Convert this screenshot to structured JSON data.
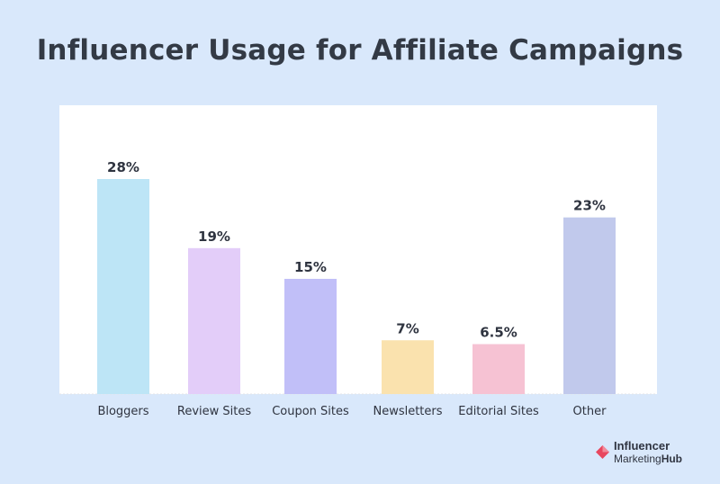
{
  "chart_data": {
    "type": "bar",
    "title": "Influencer Usage for Affiliate Campaigns",
    "xlabel": "",
    "ylabel": "",
    "categories": [
      "Bloggers",
      "Review Sites",
      "Coupon Sites",
      "Newsletters",
      "Editorial Sites",
      "Other"
    ],
    "values": [
      28,
      19,
      15,
      7,
      6.5,
      23
    ],
    "value_labels": [
      "28%",
      "19%",
      "15%",
      "7%",
      "6.5%",
      "23%"
    ],
    "colors": [
      "#bde5f6",
      "#e3cdf9",
      "#c1bff8",
      "#fae2ae",
      "#f6c2d3",
      "#c1c9ec"
    ],
    "ylim": [
      0,
      28
    ],
    "grid": false,
    "legend": "none"
  },
  "brand": {
    "line1": "Influencer",
    "line2a": "Marketing",
    "line2b": "Hub",
    "mark_colors": [
      "#e8475f",
      "#f28b9b"
    ]
  }
}
